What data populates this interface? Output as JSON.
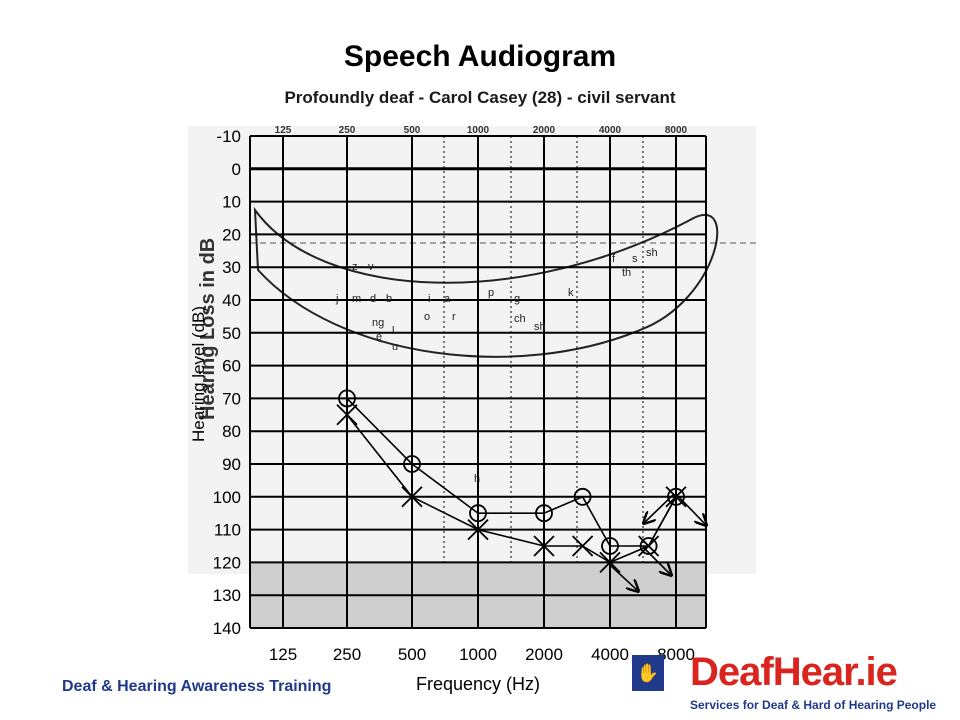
{
  "header": {
    "title": "Speech Audiogram",
    "subtitle": "Profoundly deaf - Carol Casey  (28) - civil servant"
  },
  "footer": {
    "training": "Deaf & Hearing Awareness Training",
    "brand_logo": "DeafHear.ie",
    "brand_tagline": "Services for Deaf & Hard of Hearing People"
  },
  "colors": {
    "grid": "#000000",
    "gray_band": "#cfcfcf",
    "logo_red": "#d9251d",
    "logo_blue": "#1f3a8a"
  },
  "chart_data": {
    "type": "line",
    "title": "Speech Audiogram",
    "xlabel": "Frequency (Hz)",
    "ylabel": "Hearing level (dB)",
    "background_ylabel": "Hearing Loss in dB",
    "x_ticks": [
      "125",
      "250",
      "500",
      "1000",
      "2000",
      "4000",
      "8000"
    ],
    "x_top_ticks": [
      "125",
      "250",
      "500",
      "1000",
      "2000",
      "4000",
      "8000"
    ],
    "y_ticks": [
      -10,
      0,
      10,
      20,
      30,
      40,
      50,
      60,
      70,
      80,
      90,
      100,
      110,
      120,
      130,
      140
    ],
    "ylim": [
      -10,
      140
    ],
    "y_inverted": true,
    "speech_letters": [
      "z",
      "v",
      "j",
      "m",
      "d",
      "b",
      "i",
      "a",
      "ng",
      "e",
      "l",
      "u",
      "o",
      "r",
      "p",
      "h",
      "g",
      "ch",
      "sh",
      "k",
      "f",
      "s",
      "th",
      "sh"
    ],
    "series": [
      {
        "marker": "circle",
        "x": [
          250,
          500,
          1000,
          2000,
          3000,
          4000,
          6000,
          8000
        ],
        "values": [
          70,
          90,
          105,
          105,
          100,
          115,
          115,
          100
        ]
      },
      {
        "marker": "cross",
        "x": [
          250,
          500,
          1000,
          2000,
          3000,
          4000,
          6000,
          8000
        ],
        "values": [
          75,
          100,
          110,
          115,
          115,
          120,
          115,
          100
        ]
      }
    ]
  }
}
